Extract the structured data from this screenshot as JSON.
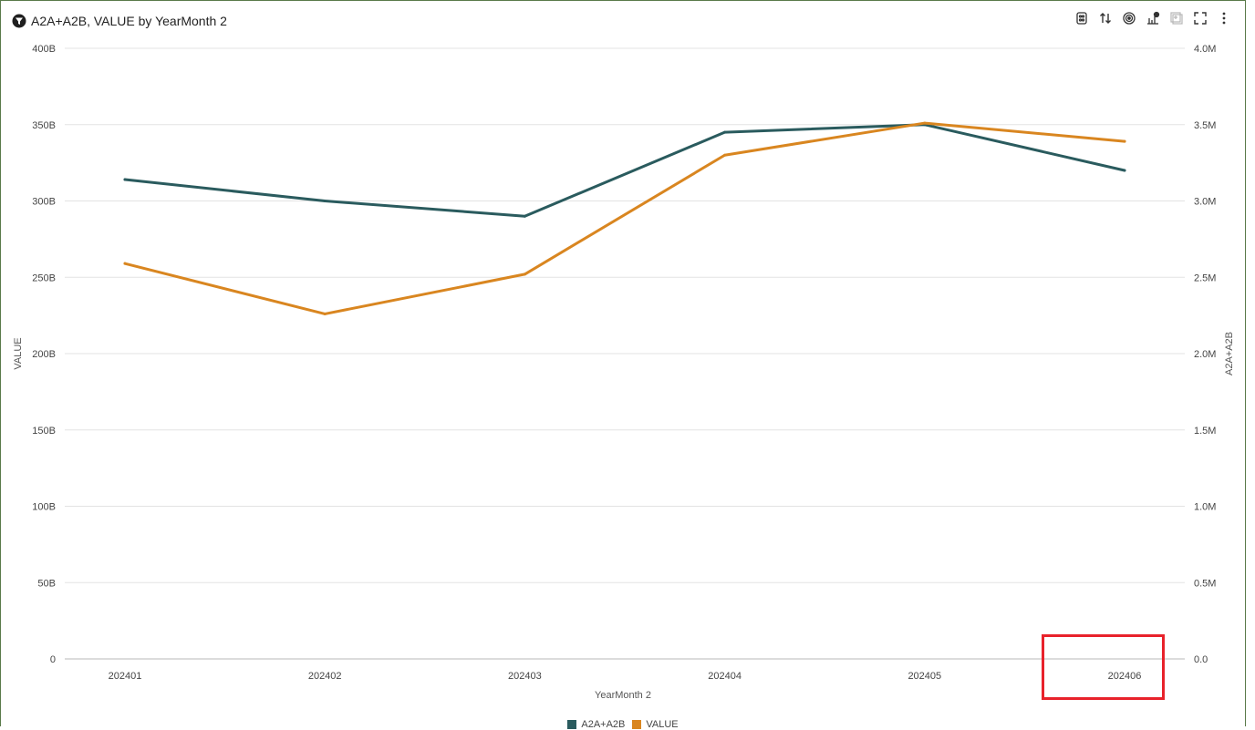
{
  "title": "A2A+A2B, VALUE by YearMonth 2",
  "toolbar": {
    "icons": [
      "data-icon",
      "sort-icon",
      "target-icon",
      "chart-type-icon",
      "add-icon",
      "fullscreen-icon",
      "more-icon"
    ]
  },
  "colors": {
    "series1": "#2a5b5e",
    "series2": "#d98620",
    "grid": "#e3e3e3",
    "highlight": "#e8222b"
  },
  "chart_data": {
    "type": "line",
    "title": "A2A+A2B, VALUE by YearMonth 2",
    "xlabel": "YearMonth 2",
    "ylabel_left": "VALUE",
    "ylabel_right": "A2A+A2B",
    "categories": [
      "202401",
      "202402",
      "202403",
      "202404",
      "202405",
      "202406"
    ],
    "yticks_left": [
      "0",
      "50B",
      "100B",
      "150B",
      "200B",
      "250B",
      "300B",
      "350B",
      "400B"
    ],
    "yticks_right": [
      "0.0",
      "0.5M",
      "1.0M",
      "1.5M",
      "2.0M",
      "2.5M",
      "3.0M",
      "3.5M",
      "4.0M"
    ],
    "ylim_left": [
      0,
      400
    ],
    "ylim_right": [
      0,
      4.0
    ],
    "series": [
      {
        "name": "A2A+A2B",
        "axis": "right",
        "unit": "M",
        "values": [
          3.14,
          3.0,
          2.9,
          3.45,
          3.5,
          3.2
        ]
      },
      {
        "name": "VALUE",
        "axis": "left",
        "unit": "B",
        "values": [
          259,
          226,
          252,
          330,
          351,
          339
        ]
      }
    ],
    "grid": true,
    "legend": "bottom"
  }
}
